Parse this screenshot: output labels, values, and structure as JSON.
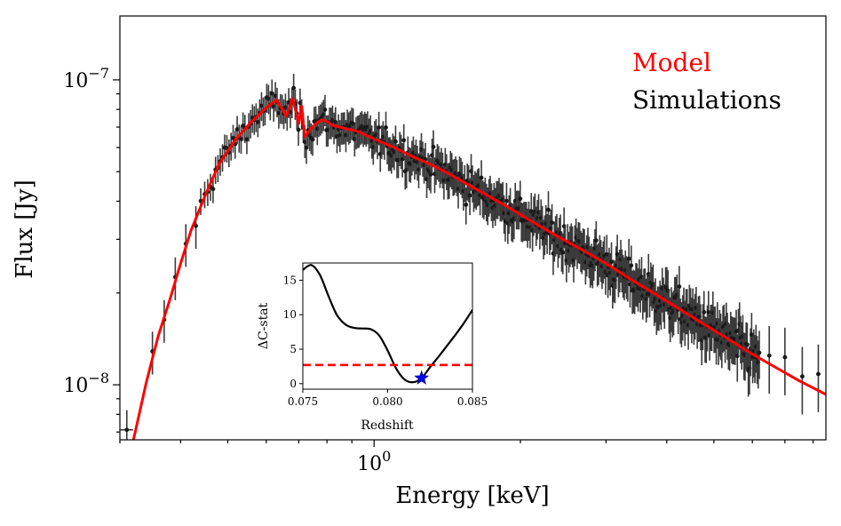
{
  "chart_data": [
    {
      "type": "scatter",
      "xlabel": "Energy [keV]",
      "ylabel": "Flux [Jy]",
      "x_scale": "log",
      "y_scale": "log",
      "xlim": [
        0.3,
        8.5
      ],
      "ylim": [
        6.6e-09,
        1.62e-07
      ],
      "x_ticks": [
        {
          "value": 1.0,
          "label_base": "10",
          "label_exp": "0"
        }
      ],
      "y_ticks": [
        {
          "value": 1e-08,
          "label_base": "10",
          "label_exp": "−8"
        },
        {
          "value": 1e-07,
          "label_base": "10",
          "label_exp": "−7"
        }
      ],
      "legend": {
        "placement": "top-right"
      },
      "series": [
        {
          "name": "Model",
          "kind": "line",
          "color": "#ff0000",
          "x": [
            0.32,
            0.34,
            0.36,
            0.38,
            0.4,
            0.42,
            0.45,
            0.48,
            0.52,
            0.56,
            0.6,
            0.63,
            0.66,
            0.68,
            0.7,
            0.71,
            0.72,
            0.74,
            0.76,
            0.78,
            0.8,
            0.82,
            0.85,
            0.88,
            0.92,
            0.96,
            1.0,
            1.1,
            1.2,
            1.3,
            1.4,
            1.5,
            1.7,
            1.9,
            2.1,
            2.4,
            2.7,
            3.0,
            3.4,
            3.8,
            4.3,
            4.8,
            5.4,
            6.0,
            6.7,
            7.5,
            8.5
          ],
          "y": [
            6.6e-09,
            1.02e-08,
            1.45e-08,
            1.9e-08,
            2.5e-08,
            3.2e-08,
            4.2e-08,
            5.3e-08,
            6.4e-08,
            7.3e-08,
            8.1e-08,
            8.6e-08,
            7.6e-08,
            8.7e-08,
            7.2e-08,
            8.2e-08,
            6.5e-08,
            6.9e-08,
            7.2e-08,
            7.4e-08,
            7.3e-08,
            7.1e-08,
            7e-08,
            6.9e-08,
            6.8e-08,
            6.6e-08,
            6.4e-08,
            6e-08,
            5.6e-08,
            5.3e-08,
            5e-08,
            4.7e-08,
            4.2e-08,
            3.8e-08,
            3.45e-08,
            3.05e-08,
            2.75e-08,
            2.5e-08,
            2.2e-08,
            1.98e-08,
            1.75e-08,
            1.57e-08,
            1.4e-08,
            1.26e-08,
            1.14e-08,
            1.03e-08,
            9.3e-09
          ]
        },
        {
          "name": "Simulations",
          "kind": "errorbar-points",
          "color": "#000000"
        }
      ]
    },
    {
      "type": "line",
      "inset": true,
      "xlabel": "Redshift",
      "ylabel": "ΔC-stat",
      "xlim": [
        0.075,
        0.085
      ],
      "ylim": [
        -0.8,
        17.5
      ],
      "x_ticks": [
        "0.075",
        "0.080",
        "0.085"
      ],
      "y_ticks": [
        "0",
        "5",
        "10",
        "15"
      ],
      "curve": {
        "color": "#000000",
        "x": [
          0.075,
          0.0755,
          0.076,
          0.0765,
          0.077,
          0.0775,
          0.078,
          0.0785,
          0.079,
          0.0795,
          0.08,
          0.0805,
          0.081,
          0.0815,
          0.082,
          0.0825,
          0.083,
          0.0835,
          0.084,
          0.0845,
          0.085
        ],
        "y": [
          16.5,
          17.2,
          15.8,
          12.8,
          10.0,
          8.6,
          8.1,
          8.0,
          7.9,
          7.0,
          4.8,
          2.2,
          0.6,
          0.2,
          0.8,
          2.4,
          3.9,
          5.5,
          7.1,
          8.8,
          10.7
        ]
      },
      "threshold": {
        "y": 2.71,
        "color": "#ff0000",
        "style": "dashed"
      },
      "best_fit": {
        "x": 0.082,
        "y": 0.8,
        "color": "#0000ff",
        "marker": "star"
      }
    }
  ]
}
